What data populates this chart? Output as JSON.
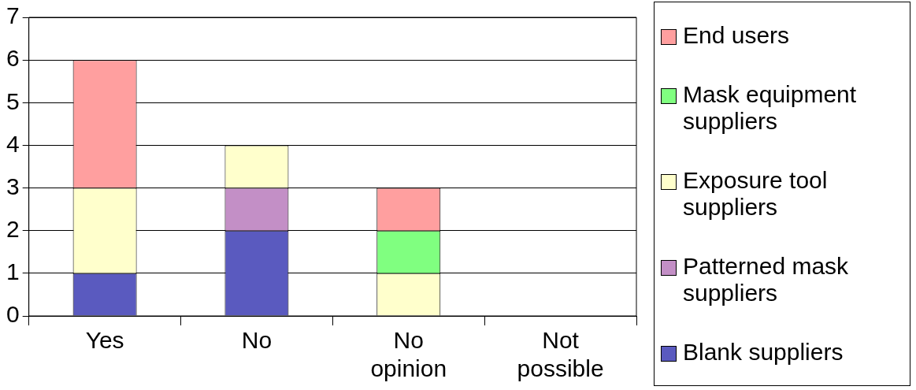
{
  "chart_data": {
    "type": "bar",
    "stacked": true,
    "categories": [
      "Yes",
      "No",
      "No opinion",
      "Not possible"
    ],
    "series": [
      {
        "name": "Blank suppliers",
        "color": "#5a5abf",
        "values": [
          1,
          2,
          0,
          0
        ]
      },
      {
        "name": "Patterned mask suppliers",
        "color": "#c38fc6",
        "values": [
          0,
          1,
          0,
          0
        ]
      },
      {
        "name": "Exposure tool suppliers",
        "color": "#ffffcc",
        "values": [
          2,
          1,
          1,
          0
        ]
      },
      {
        "name": "Mask equipment suppliers",
        "color": "#80ff80",
        "values": [
          0,
          0,
          1,
          0
        ]
      },
      {
        "name": "End users",
        "color": "#ff9f9f",
        "values": [
          3,
          0,
          1,
          0
        ]
      }
    ],
    "ylim": [
      0,
      7
    ],
    "yticks": [
      0,
      1,
      2,
      3,
      4,
      5,
      6,
      7
    ],
    "grid": "y",
    "legend": "right"
  }
}
